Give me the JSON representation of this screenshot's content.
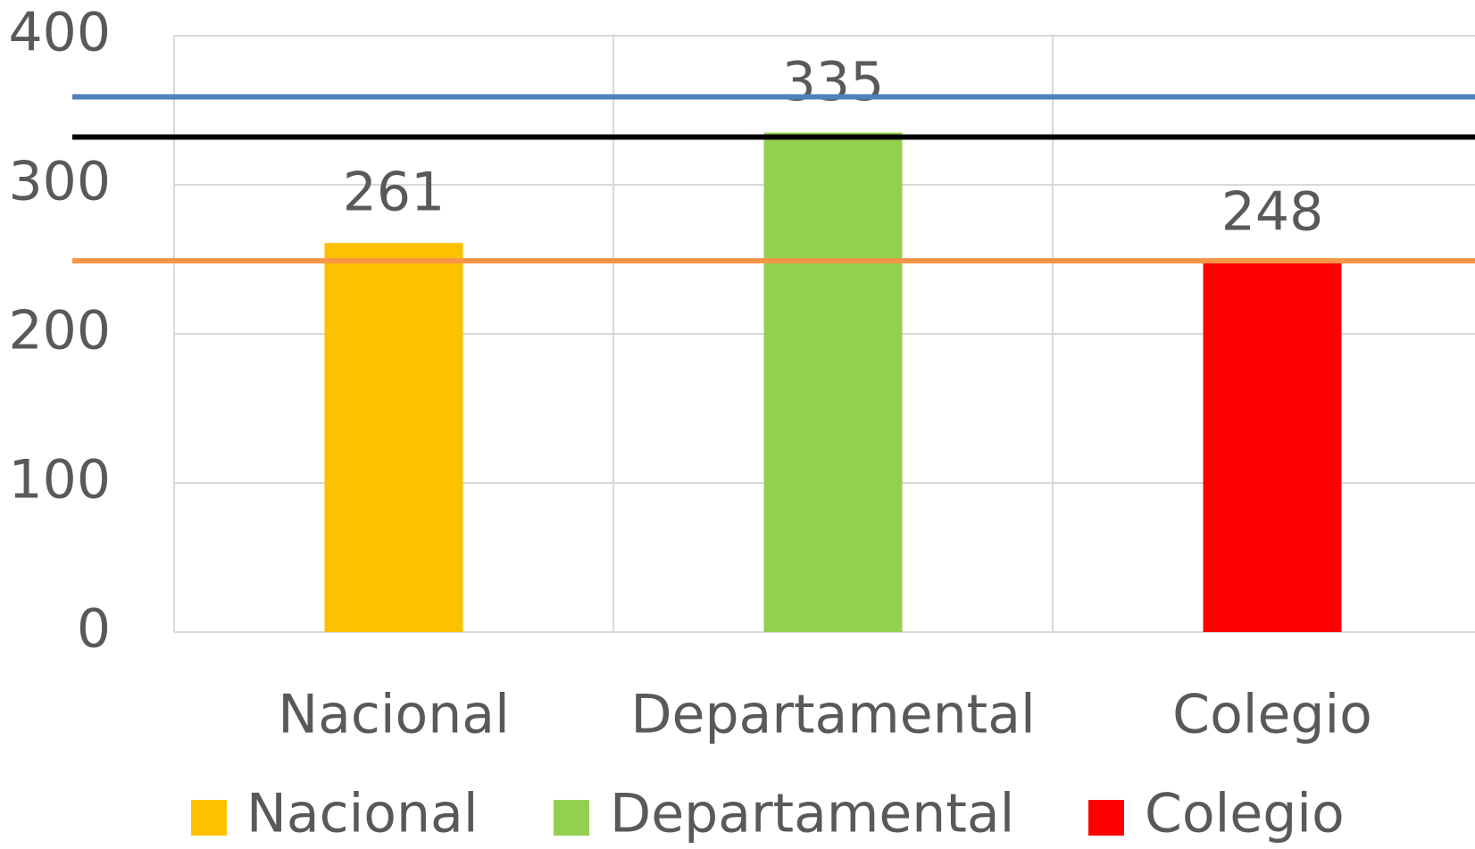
{
  "chart_data": {
    "type": "bar",
    "categories": [
      "Nacional",
      "Departamental",
      "Colegio"
    ],
    "values": [
      261,
      335,
      248
    ],
    "colors": [
      "#FFC000",
      "#92D050",
      "#FF0000"
    ],
    "ylim": [
      0,
      400
    ],
    "yticks": [
      0,
      100,
      200,
      300,
      400
    ],
    "grid": true,
    "legend": "bottom",
    "reference_lines": [
      {
        "value": 359,
        "color": "#4F81BD"
      },
      {
        "value": 332,
        "color": "#000000"
      },
      {
        "value": 249,
        "color": "#F79646"
      }
    ]
  }
}
